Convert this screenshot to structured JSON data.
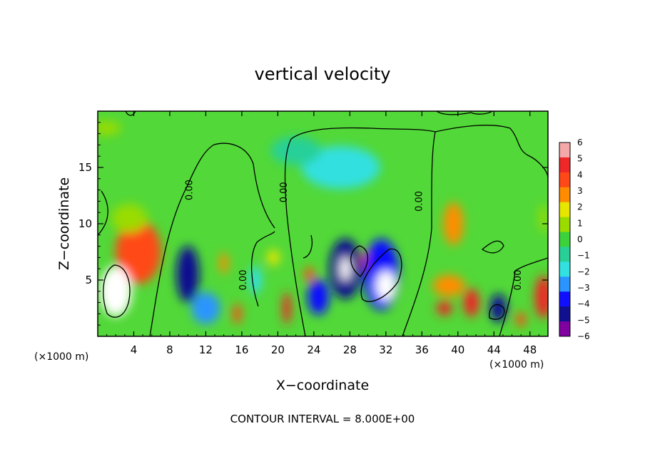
{
  "chart_data": {
    "type": "heatmap",
    "title": "vertical velocity",
    "xlabel": "X−coordinate",
    "ylabel": "Z−coordinate",
    "x_unit_label": "(×1000 m)",
    "footer": "CONTOUR INTERVAL = 8.000E+00",
    "xlim": [
      0,
      50
    ],
    "ylim": [
      0,
      20
    ],
    "x_ticks": [
      4,
      8,
      12,
      16,
      20,
      24,
      28,
      32,
      36,
      40,
      44,
      48
    ],
    "y_ticks": [
      5,
      10,
      15
    ],
    "grid": false,
    "colorbar": {
      "labels": [
        "6",
        "5",
        "4",
        "3",
        "2",
        "1",
        "0",
        "−1",
        "−2",
        "−3",
        "−4",
        "−5",
        "−6"
      ],
      "colors": [
        "#f5a8a8",
        "#ee2828",
        "#ff4818",
        "#ff8c00",
        "#e6e600",
        "#9adc00",
        "#3cd23c",
        "#28d098",
        "#33e0e0",
        "#2a94ff",
        "#1010ff",
        "#101090",
        "#8000a0"
      ]
    },
    "contour_labels": [
      {
        "text": "0.00",
        "x": 10.5,
        "y": 13.0
      },
      {
        "text": "0.00",
        "x": 16.5,
        "y": 5.0
      },
      {
        "text": "0.00",
        "x": 21.0,
        "y": 12.8
      },
      {
        "text": "0.00",
        "x": 36.0,
        "y": 12.0
      },
      {
        "text": "0.00",
        "x": 47.0,
        "y": 5.0
      }
    ],
    "features": [
      {
        "x": 4.5,
        "y": 7.5,
        "w": 64,
        "h": 90,
        "value": 4.5
      },
      {
        "x": 2.0,
        "y": 4.0,
        "w": 45,
        "h": 70,
        "value": 6
      },
      {
        "x": 3.5,
        "y": 10.5,
        "w": 50,
        "h": 40,
        "value": 1.5
      },
      {
        "x": 10.0,
        "y": 5.5,
        "w": 32,
        "h": 80,
        "value": -4.5
      },
      {
        "x": 12.0,
        "y": 2.5,
        "w": 40,
        "h": 45,
        "value": -3
      },
      {
        "x": 14.0,
        "y": 6.5,
        "w": 12,
        "h": 30,
        "value": 3
      },
      {
        "x": 15.5,
        "y": 2.0,
        "w": 12,
        "h": 28,
        "value": 4
      },
      {
        "x": 17.5,
        "y": 5.0,
        "w": 18,
        "h": 40,
        "value": -2
      },
      {
        "x": 19.5,
        "y": 7.0,
        "w": 18,
        "h": 22,
        "value": 2.5
      },
      {
        "x": 21.0,
        "y": 2.5,
        "w": 12,
        "h": 45,
        "value": 5
      },
      {
        "x": 23.5,
        "y": 5.5,
        "w": 14,
        "h": 20,
        "value": 4
      },
      {
        "x": 24.5,
        "y": 3.5,
        "w": 30,
        "h": 50,
        "value": -3.5
      },
      {
        "x": 27.5,
        "y": 6.0,
        "w": 45,
        "h": 85,
        "value": -5
      },
      {
        "x": 27.5,
        "y": 6.0,
        "w": 14,
        "h": 34,
        "value": 6
      },
      {
        "x": 30.0,
        "y": 6.5,
        "w": 18,
        "h": 34,
        "value": 4
      },
      {
        "x": 31.5,
        "y": 5.5,
        "w": 50,
        "h": 100,
        "value": -4
      },
      {
        "x": 32.0,
        "y": 4.5,
        "w": 28,
        "h": 42,
        "value": 6
      },
      {
        "x": 27.0,
        "y": 15.0,
        "w": 110,
        "h": 60,
        "value": -1.5
      },
      {
        "x": 39.5,
        "y": 10.0,
        "w": 28,
        "h": 60,
        "value": 3.5
      },
      {
        "x": 39.0,
        "y": 4.5,
        "w": 45,
        "h": 30,
        "value": 3
      },
      {
        "x": 38.5,
        "y": 2.5,
        "w": 22,
        "h": 20,
        "value": 5
      },
      {
        "x": 41.5,
        "y": 3.0,
        "w": 22,
        "h": 40,
        "value": 5.5
      },
      {
        "x": 44.5,
        "y": 2.5,
        "w": 24,
        "h": 40,
        "value": -4.5
      },
      {
        "x": 47.0,
        "y": 1.5,
        "w": 14,
        "h": 20,
        "value": 4
      },
      {
        "x": 49.5,
        "y": 3.5,
        "w": 24,
        "h": 60,
        "value": 5.5
      },
      {
        "x": 49.5,
        "y": 10.5,
        "w": 12,
        "h": 40,
        "value": 1.5
      },
      {
        "x": 22.0,
        "y": 16.5,
        "w": 70,
        "h": 40,
        "value": -0.8
      },
      {
        "x": 1.0,
        "y": 18.5,
        "w": 40,
        "h": 20,
        "value": 1
      }
    ]
  }
}
